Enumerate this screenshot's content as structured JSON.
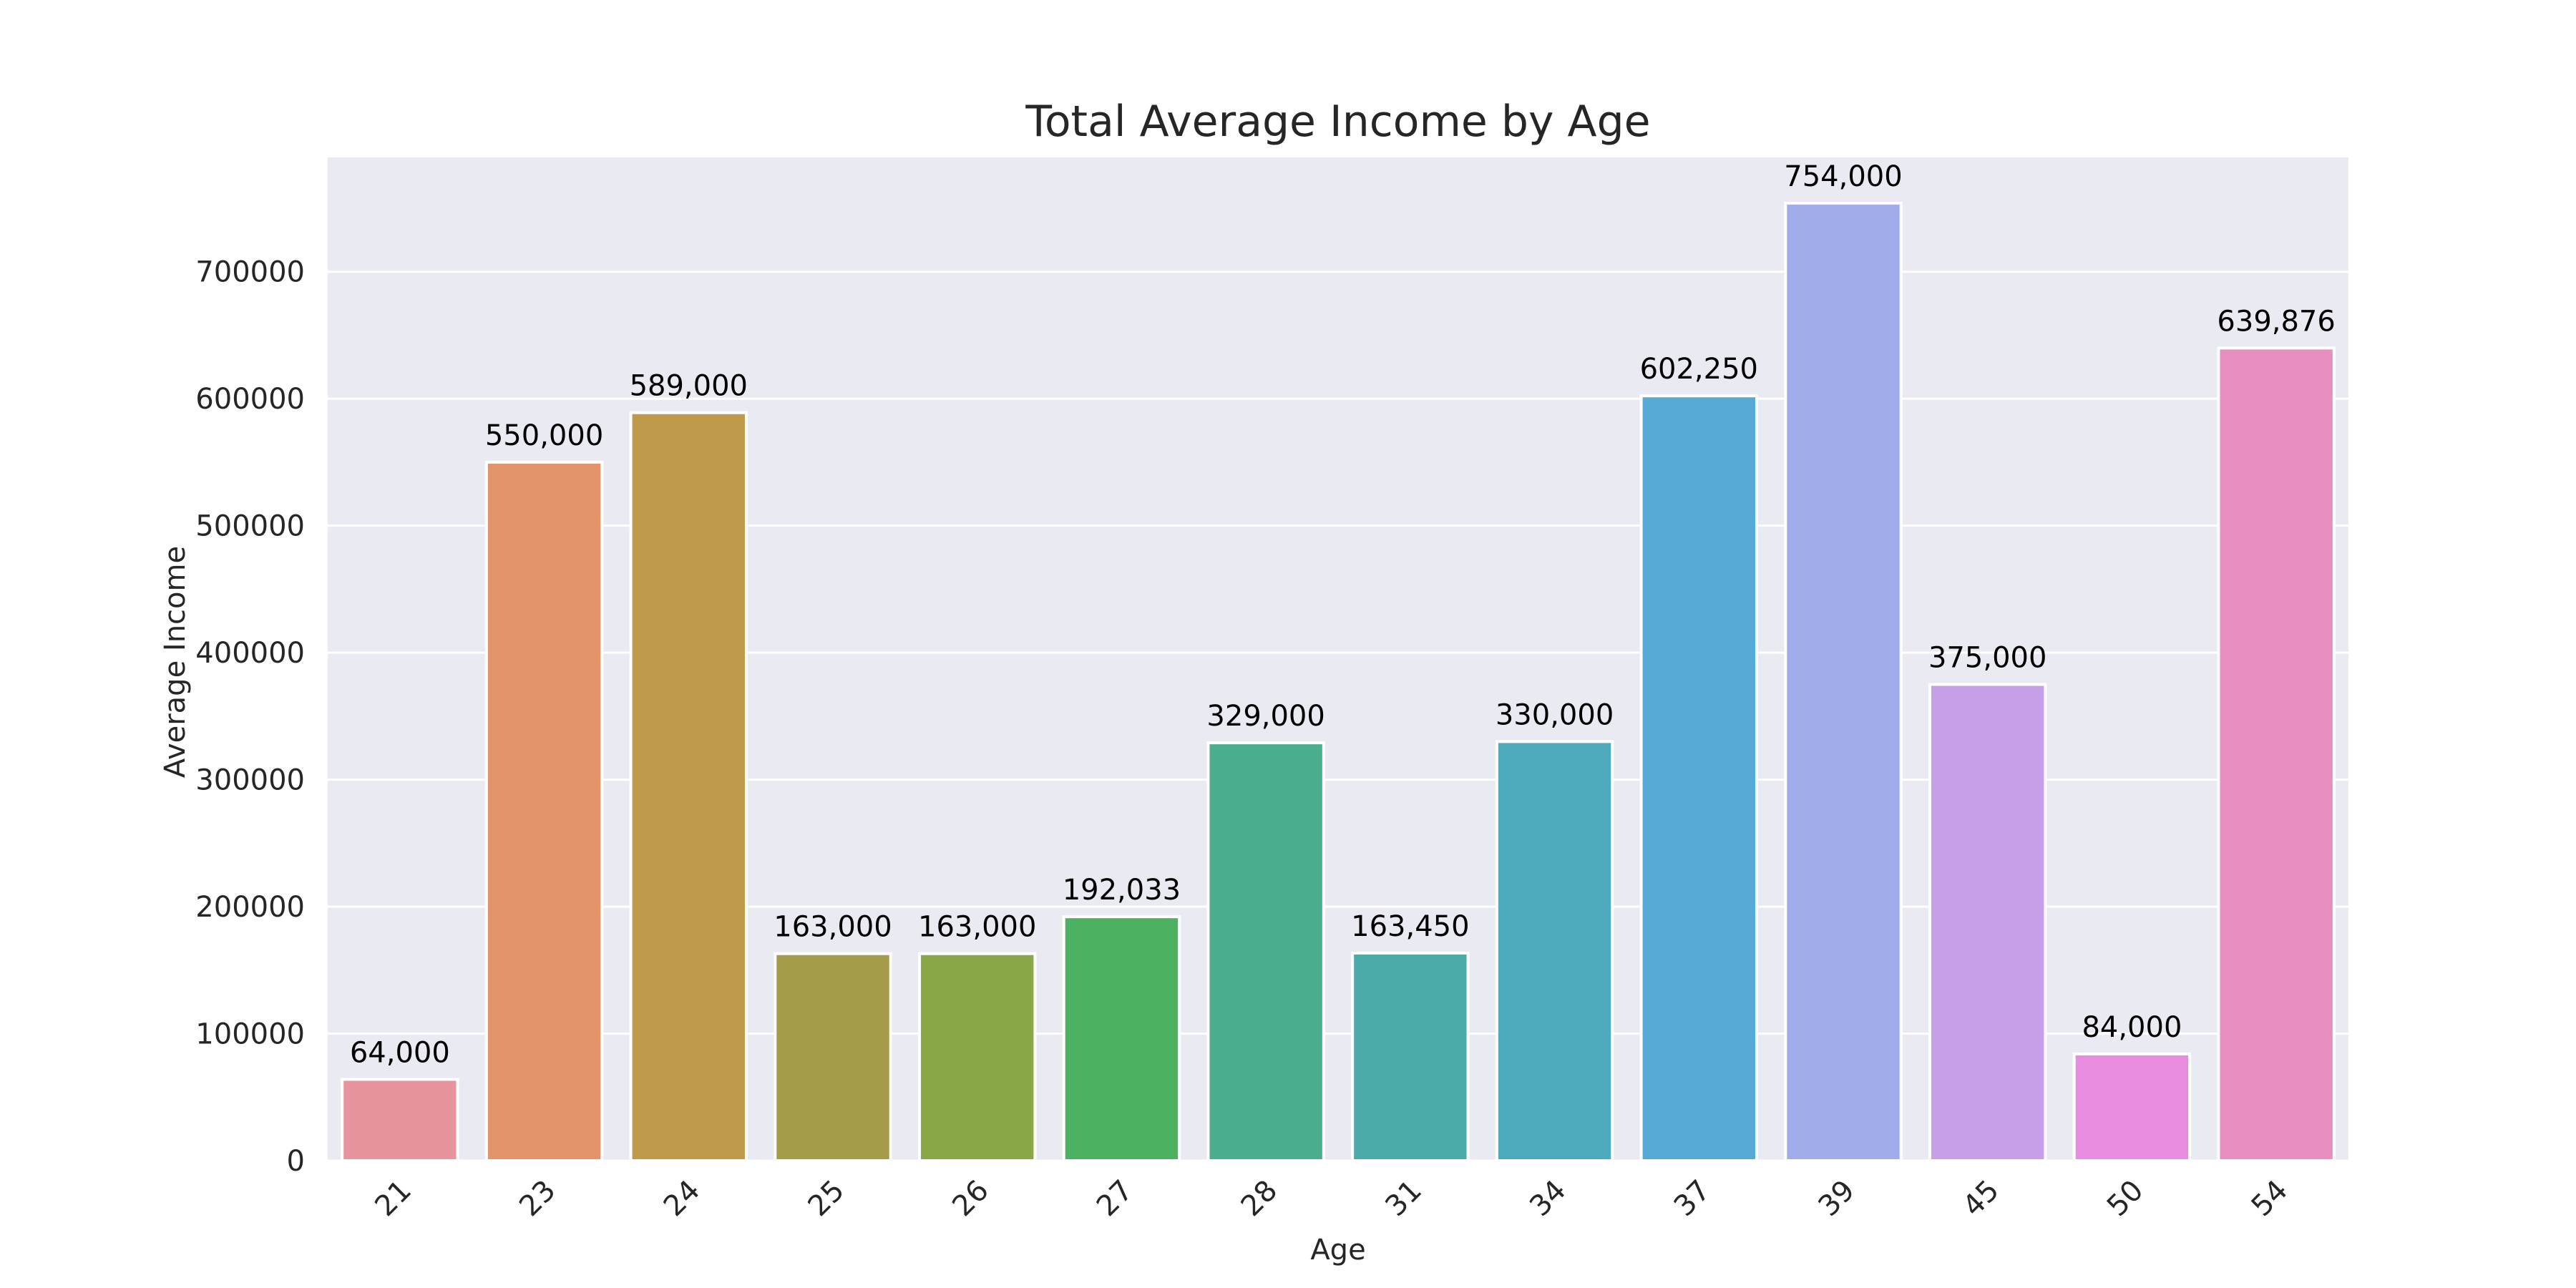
{
  "chart_data": {
    "type": "bar",
    "title": "Total Average Income by Age",
    "xlabel": "Age",
    "ylabel": "Average Income",
    "categories": [
      "21",
      "23",
      "24",
      "25",
      "26",
      "27",
      "28",
      "31",
      "34",
      "37",
      "39",
      "45",
      "50",
      "54"
    ],
    "values": [
      64000,
      550000,
      589000,
      163000,
      163000,
      192033,
      329000,
      163450,
      330000,
      602250,
      754000,
      375000,
      84000,
      639876
    ],
    "value_labels": [
      "64,000",
      "550,000",
      "589,000",
      "163,000",
      "163,000",
      "192,033",
      "329,000",
      "163,450",
      "330,000",
      "602,250",
      "754,000",
      "375,000",
      "84,000",
      "639,876"
    ],
    "colors": [
      "#E8949E",
      "#E3936A",
      "#C09A4B",
      "#A49C4A",
      "#89A747",
      "#4CB262",
      "#4BAE8F",
      "#4BABA8",
      "#4EABBD",
      "#56ABD6",
      "#A1ADEA",
      "#C79FE8",
      "#E88CDF",
      "#E88FBF"
    ],
    "ylim": [
      0,
      790000
    ],
    "yticks": [
      0,
      100000,
      200000,
      300000,
      400000,
      500000,
      600000,
      700000
    ],
    "ytick_labels": [
      "0",
      "100000",
      "200000",
      "300000",
      "400000",
      "500000",
      "600000",
      "700000"
    ],
    "grid": true,
    "background": "#EAEAF2"
  }
}
